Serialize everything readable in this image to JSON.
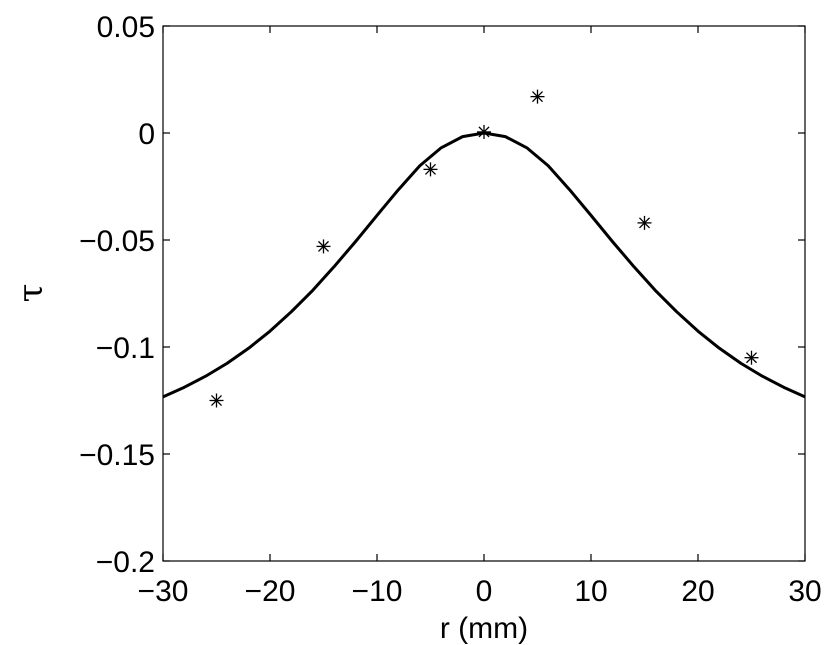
{
  "chart_data": {
    "type": "scatter",
    "title": "",
    "xlabel": "r (mm)",
    "ylabel": "τ",
    "xlim": [
      -30,
      30
    ],
    "ylim": [
      -0.2,
      0.05
    ],
    "xticks": [
      -30,
      -20,
      -10,
      0,
      10,
      20,
      30
    ],
    "yticks": [
      0.05,
      0,
      -0.05,
      -0.1,
      -0.15,
      -0.2
    ],
    "xtick_labels": [
      "−30",
      "−20",
      "−10",
      "0",
      "10",
      "20",
      "30"
    ],
    "ytick_labels": [
      "0.05",
      "0",
      "−0.05",
      "−0.1",
      "−0.15",
      "−0.2"
    ],
    "grid": false,
    "series": [
      {
        "kind": "line",
        "color": "#000000",
        "x": [
          -30,
          -28,
          -26,
          -24,
          -22,
          -20,
          -18,
          -16,
          -14,
          -12,
          -10,
          -8,
          -6,
          -4,
          -2,
          0,
          2,
          4,
          6,
          8,
          10,
          12,
          14,
          16,
          18,
          20,
          22,
          24,
          26,
          28,
          30
        ],
        "y": [
          -0.1233,
          -0.1188,
          -0.1136,
          -0.1076,
          -0.1006,
          -0.0926,
          -0.0835,
          -0.0735,
          -0.0624,
          -0.0507,
          -0.0385,
          -0.0265,
          -0.0153,
          -0.0069,
          -0.0017,
          0,
          -0.0017,
          -0.0069,
          -0.0153,
          -0.0265,
          -0.0385,
          -0.0507,
          -0.0624,
          -0.0735,
          -0.0835,
          -0.0926,
          -0.1006,
          -0.1076,
          -0.1136,
          -0.1188,
          -0.1233
        ]
      },
      {
        "kind": "markers",
        "marker": "asterisk",
        "color": "#000000",
        "x": [
          -25,
          -15,
          -5,
          0,
          5,
          15,
          25
        ],
        "y": [
          -0.125,
          -0.053,
          -0.017,
          0.0005,
          0.017,
          -0.042,
          -0.105
        ]
      }
    ]
  }
}
